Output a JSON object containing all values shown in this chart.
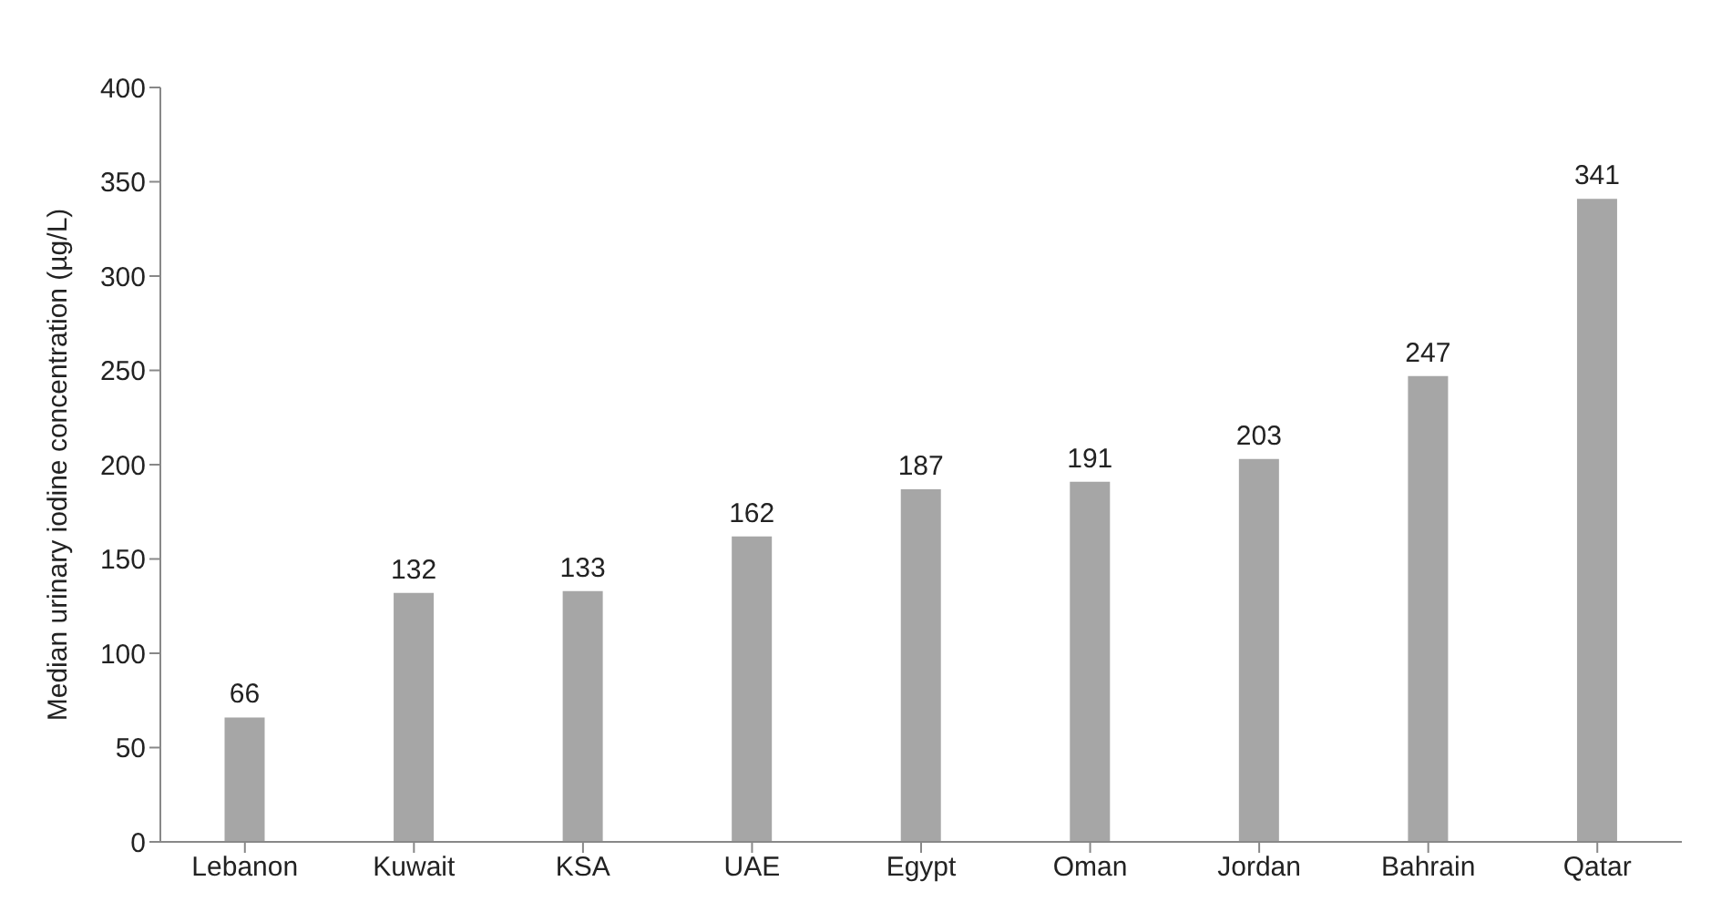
{
  "chart_data": {
    "type": "bar",
    "ylabel": "Median urinary iodine concentration (µg/L)",
    "categories": [
      "Lebanon",
      "Kuwait",
      "KSA",
      "UAE",
      "Egypt",
      "Oman",
      "Jordan",
      "Bahrain",
      "Qatar"
    ],
    "values": [
      66,
      132,
      133,
      162,
      187,
      191,
      203,
      247,
      341
    ],
    "color": "#a6a6a6",
    "ylim": [
      0,
      400
    ],
    "yticks": [
      0,
      50,
      100,
      150,
      200,
      250,
      300,
      350,
      400
    ],
    "grid": false,
    "data_labels": true
  }
}
